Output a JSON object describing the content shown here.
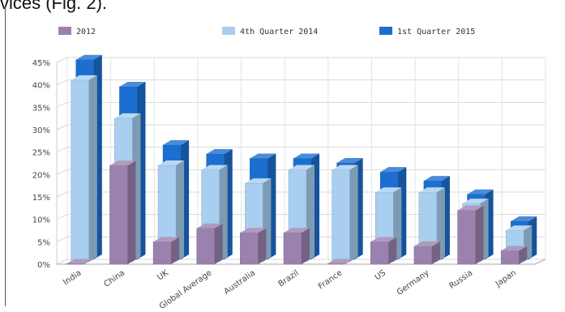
{
  "fragment_text": "vices (Fig. 2).",
  "chart_data": {
    "type": "bar",
    "categories": [
      "India",
      "China",
      "UK",
      "Global Average",
      "Australia",
      "Brazil",
      "France",
      "US",
      "Germany",
      "Russia",
      "Japan"
    ],
    "series": [
      {
        "name": "2012",
        "color": "#9B82AE",
        "values": [
          0,
          22,
          5,
          8,
          7,
          7,
          0,
          5,
          4,
          12,
          3
        ]
      },
      {
        "name": "4th Quarter 2014",
        "color": "#A8CEF0",
        "values": [
          40.5,
          32,
          21.5,
          20.5,
          17.5,
          20.5,
          20.5,
          15.5,
          15.5,
          13,
          7
        ]
      },
      {
        "name": "1st Quarter 2015",
        "color": "#1C6FD0",
        "values": [
          44.5,
          38.5,
          25.5,
          23.5,
          22.5,
          22.5,
          21.5,
          19.5,
          17.5,
          14.5,
          8.5
        ]
      }
    ],
    "yticks": [
      "0%",
      "5%",
      "10%",
      "15%",
      "20%",
      "25%",
      "30%",
      "35%",
      "40%",
      "45%"
    ],
    "ylim": [
      0,
      45
    ],
    "grid": true,
    "legend_position": "top",
    "style": "3d-clustered-column"
  }
}
